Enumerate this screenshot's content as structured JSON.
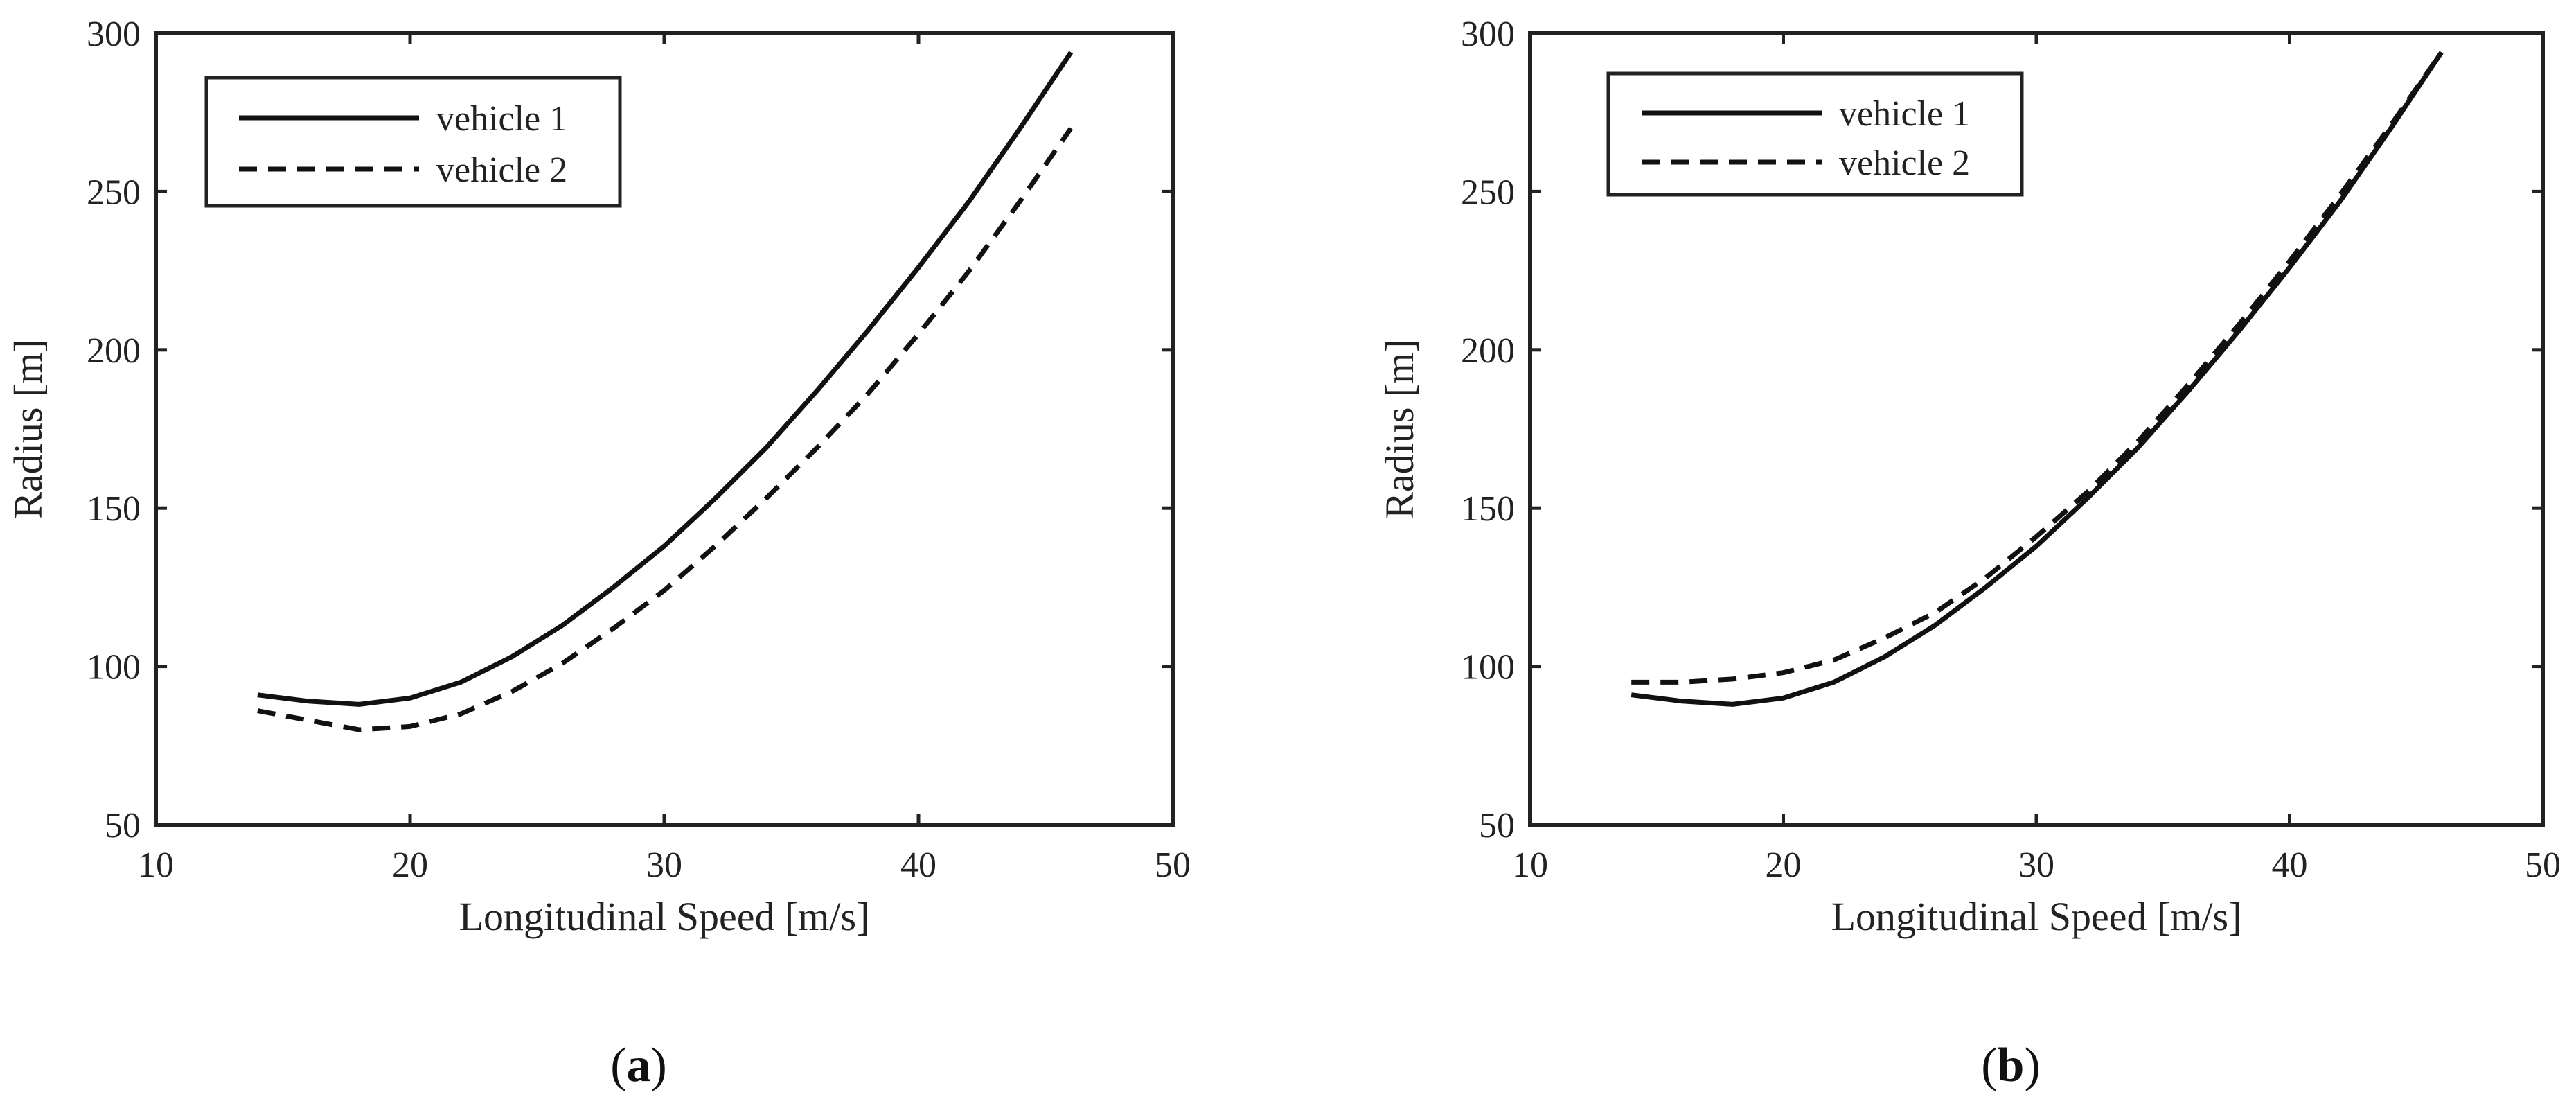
{
  "figure": {
    "panel_labels": [
      {
        "open": "(",
        "letter": "a",
        "close": ")"
      },
      {
        "open": "(",
        "letter": "b",
        "close": ")"
      }
    ]
  },
  "chart_data": [
    {
      "type": "line",
      "panel": "a",
      "xlabel": "Longitudinal Speed [m/s]",
      "ylabel": "Radius [m]",
      "xlim": [
        10,
        50
      ],
      "ylim": [
        50,
        300
      ],
      "xticks": [
        10,
        20,
        30,
        40,
        50
      ],
      "yticks": [
        50,
        100,
        150,
        200,
        250,
        300
      ],
      "grid": false,
      "legend_position": "top-left",
      "series": [
        {
          "name": "vehicle 1",
          "style": "solid",
          "x": [
            14,
            16,
            18,
            20,
            22,
            24,
            26,
            28,
            30,
            32,
            34,
            36,
            38,
            40,
            42,
            44,
            46
          ],
          "y": [
            91,
            89,
            88,
            90,
            95,
            103,
            113,
            125,
            138,
            153,
            169,
            187,
            206,
            226,
            247,
            270,
            294
          ]
        },
        {
          "name": "vehicle 2",
          "style": "dashed",
          "x": [
            14,
            16,
            18,
            20,
            22,
            24,
            26,
            28,
            30,
            32,
            34,
            36,
            38,
            40,
            42,
            44,
            46
          ],
          "y": [
            86,
            83,
            80,
            81,
            85,
            92,
            101,
            112,
            124,
            138,
            153,
            169,
            186,
            205,
            225,
            247,
            270
          ]
        }
      ]
    },
    {
      "type": "line",
      "panel": "b",
      "xlabel": "Longitudinal Speed [m/s]",
      "ylabel": "Radius [m]",
      "xlim": [
        10,
        50
      ],
      "ylim": [
        50,
        300
      ],
      "xticks": [
        10,
        20,
        30,
        40,
        50
      ],
      "yticks": [
        50,
        100,
        150,
        200,
        250,
        300
      ],
      "grid": false,
      "legend_position": "top-left",
      "series": [
        {
          "name": "vehicle 1",
          "style": "solid",
          "x": [
            14,
            16,
            18,
            20,
            22,
            24,
            26,
            28,
            30,
            32,
            34,
            36,
            38,
            40,
            42,
            44,
            46
          ],
          "y": [
            91,
            89,
            88,
            90,
            95,
            103,
            113,
            125,
            138,
            153,
            169,
            187,
            206,
            226,
            247,
            270,
            294
          ]
        },
        {
          "name": "vehicle 2",
          "style": "dashed",
          "x": [
            14,
            16,
            18,
            20,
            22,
            24,
            26,
            28,
            30,
            32,
            34,
            36,
            38,
            40,
            42,
            44,
            46
          ],
          "y": [
            95,
            95,
            96,
            98,
            102,
            109,
            117,
            128,
            141,
            155,
            171,
            189,
            208,
            228,
            249,
            271,
            294
          ]
        }
      ]
    }
  ]
}
